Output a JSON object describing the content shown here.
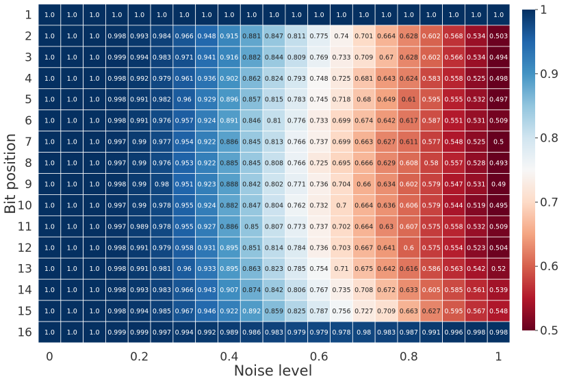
{
  "chart_data": {
    "type": "heatmap",
    "title": "",
    "xlabel": "Noise level",
    "ylabel": "Bit position",
    "x": [
      0,
      0.05,
      0.1,
      0.15,
      0.2,
      0.25,
      0.3,
      0.35,
      0.4,
      0.45,
      0.5,
      0.55,
      0.6,
      0.65,
      0.7,
      0.75,
      0.8,
      0.85,
      0.9,
      0.95,
      1
    ],
    "y": [
      1,
      2,
      3,
      4,
      5,
      6,
      7,
      8,
      9,
      10,
      11,
      12,
      13,
      14,
      15,
      16
    ],
    "xticks": [
      "0",
      "0.2",
      "0.4",
      "0.6",
      "0.8",
      "1"
    ],
    "yticks": [
      "1",
      "2",
      "3",
      "4",
      "5",
      "6",
      "7",
      "8",
      "9",
      "10",
      "11",
      "12",
      "13",
      "14",
      "15",
      "16"
    ],
    "colorbar": {
      "min": 0.5,
      "max": 1,
      "ticks": [
        "0.5",
        "0.6",
        "0.7",
        "0.8",
        "0.9",
        "1"
      ],
      "colormap": "RdBu"
    },
    "values": [
      [
        "1.0",
        "1.0",
        "1.0",
        "1.0",
        "1.0",
        "1.0",
        "1.0",
        "1.0",
        "1.0",
        "1.0",
        "1.0",
        "1.0",
        "1.0",
        "1.0",
        "1.0",
        "1.0",
        "1.0",
        "1.0",
        "1.0",
        "1.0",
        "1.0"
      ],
      [
        "1.0",
        "1.0",
        "1.0",
        "0.998",
        "0.993",
        "0.984",
        "0.966",
        "0.948",
        "0.915",
        "0.881",
        "0.847",
        "0.811",
        "0.775",
        "0.74",
        "0.701",
        "0.664",
        "0.628",
        "0.602",
        "0.568",
        "0.534",
        "0.503"
      ],
      [
        "1.0",
        "1.0",
        "1.0",
        "0.999",
        "0.994",
        "0.983",
        "0.971",
        "0.941",
        "0.916",
        "0.882",
        "0.844",
        "0.809",
        "0.769",
        "0.733",
        "0.709",
        "0.67",
        "0.628",
        "0.602",
        "0.566",
        "0.534",
        "0.494"
      ],
      [
        "1.0",
        "1.0",
        "1.0",
        "0.998",
        "0.992",
        "0.979",
        "0.961",
        "0.936",
        "0.902",
        "0.862",
        "0.824",
        "0.793",
        "0.748",
        "0.725",
        "0.681",
        "0.643",
        "0.624",
        "0.583",
        "0.558",
        "0.525",
        "0.498"
      ],
      [
        "1.0",
        "1.0",
        "1.0",
        "0.998",
        "0.991",
        "0.982",
        "0.96",
        "0.929",
        "0.896",
        "0.857",
        "0.815",
        "0.783",
        "0.745",
        "0.718",
        "0.68",
        "0.649",
        "0.61",
        "0.595",
        "0.555",
        "0.532",
        "0.497"
      ],
      [
        "1.0",
        "1.0",
        "1.0",
        "0.998",
        "0.991",
        "0.976",
        "0.957",
        "0.924",
        "0.891",
        "0.846",
        "0.81",
        "0.776",
        "0.733",
        "0.699",
        "0.674",
        "0.642",
        "0.617",
        "0.587",
        "0.551",
        "0.531",
        "0.509"
      ],
      [
        "1.0",
        "1.0",
        "1.0",
        "0.997",
        "0.99",
        "0.977",
        "0.954",
        "0.922",
        "0.886",
        "0.845",
        "0.813",
        "0.766",
        "0.737",
        "0.699",
        "0.663",
        "0.627",
        "0.611",
        "0.577",
        "0.548",
        "0.525",
        "0.5"
      ],
      [
        "1.0",
        "1.0",
        "1.0",
        "0.997",
        "0.99",
        "0.976",
        "0.953",
        "0.922",
        "0.885",
        "0.845",
        "0.808",
        "0.766",
        "0.725",
        "0.695",
        "0.666",
        "0.629",
        "0.608",
        "0.58",
        "0.557",
        "0.528",
        "0.493"
      ],
      [
        "1.0",
        "1.0",
        "1.0",
        "0.998",
        "0.99",
        "0.98",
        "0.951",
        "0.923",
        "0.888",
        "0.842",
        "0.802",
        "0.771",
        "0.736",
        "0.704",
        "0.66",
        "0.634",
        "0.602",
        "0.579",
        "0.547",
        "0.531",
        "0.49"
      ],
      [
        "1.0",
        "1.0",
        "1.0",
        "0.997",
        "0.99",
        "0.978",
        "0.955",
        "0.924",
        "0.882",
        "0.847",
        "0.804",
        "0.762",
        "0.732",
        "0.7",
        "0.664",
        "0.636",
        "0.606",
        "0.579",
        "0.544",
        "0.519",
        "0.495"
      ],
      [
        "1.0",
        "1.0",
        "1.0",
        "0.997",
        "0.989",
        "0.978",
        "0.955",
        "0.927",
        "0.886",
        "0.85",
        "0.807",
        "0.773",
        "0.737",
        "0.702",
        "0.664",
        "0.63",
        "0.607",
        "0.575",
        "0.558",
        "0.532",
        "0.509"
      ],
      [
        "1.0",
        "1.0",
        "1.0",
        "0.998",
        "0.991",
        "0.979",
        "0.958",
        "0.931",
        "0.895",
        "0.851",
        "0.814",
        "0.784",
        "0.736",
        "0.703",
        "0.667",
        "0.641",
        "0.6",
        "0.575",
        "0.554",
        "0.523",
        "0.504"
      ],
      [
        "1.0",
        "1.0",
        "1.0",
        "0.998",
        "0.991",
        "0.981",
        "0.96",
        "0.933",
        "0.895",
        "0.863",
        "0.823",
        "0.785",
        "0.754",
        "0.71",
        "0.675",
        "0.642",
        "0.616",
        "0.586",
        "0.563",
        "0.542",
        "0.52"
      ],
      [
        "1.0",
        "1.0",
        "1.0",
        "0.998",
        "0.993",
        "0.983",
        "0.966",
        "0.943",
        "0.907",
        "0.874",
        "0.842",
        "0.806",
        "0.767",
        "0.735",
        "0.708",
        "0.672",
        "0.633",
        "0.605",
        "0.585",
        "0.561",
        "0.539"
      ],
      [
        "1.0",
        "1.0",
        "1.0",
        "0.998",
        "0.994",
        "0.985",
        "0.967",
        "0.946",
        "0.922",
        "0.892",
        "0.859",
        "0.825",
        "0.787",
        "0.756",
        "0.727",
        "0.709",
        "0.663",
        "0.627",
        "0.595",
        "0.567",
        "0.548"
      ],
      [
        "1.0",
        "1.0",
        "1.0",
        "0.999",
        "0.999",
        "0.997",
        "0.994",
        "0.992",
        "0.989",
        "0.986",
        "0.983",
        "0.979",
        "0.979",
        "0.978",
        "0.98",
        "0.983",
        "0.987",
        "0.991",
        "0.996",
        "0.998",
        "0.998"
      ]
    ]
  }
}
